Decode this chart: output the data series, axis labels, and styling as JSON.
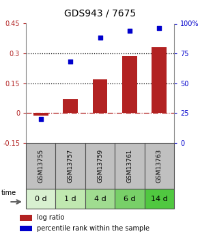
{
  "title": "GDS943 / 7675",
  "samples": [
    "GSM13755",
    "GSM13757",
    "GSM13759",
    "GSM13761",
    "GSM13763"
  ],
  "time_labels": [
    "0 d",
    "1 d",
    "4 d",
    "6 d",
    "14 d"
  ],
  "log_ratio": [
    -0.012,
    0.07,
    0.17,
    0.285,
    0.33
  ],
  "percentile_rank": [
    20,
    68,
    88,
    94,
    96
  ],
  "ylim_left": [
    -0.15,
    0.45
  ],
  "ylim_right": [
    0,
    100
  ],
  "left_ticks": [
    -0.15,
    0.0,
    0.15,
    0.3,
    0.45
  ],
  "left_tick_labels": [
    "-0.15",
    "0",
    "0.15",
    "0.3",
    "0.45"
  ],
  "right_ticks": [
    0,
    25,
    50,
    75,
    100
  ],
  "right_tick_labels": [
    "0",
    "25",
    "50",
    "75",
    "100%"
  ],
  "hlines_dotted": [
    0.15,
    0.3
  ],
  "hline_dashed": 0.0,
  "bar_color": "#b22222",
  "dot_color": "#0000cc",
  "bar_width": 0.5,
  "title_fontsize": 10,
  "tick_fontsize": 7,
  "sample_label_fontsize": 6.5,
  "time_label_fontsize": 8,
  "legend_fontsize": 7,
  "gray_bg": "#c0c0c0",
  "green_colors": [
    "#d8f0d0",
    "#c0e8b0",
    "#a0dc90",
    "#78d068",
    "#50c840"
  ],
  "box_edge_color": "#505050"
}
